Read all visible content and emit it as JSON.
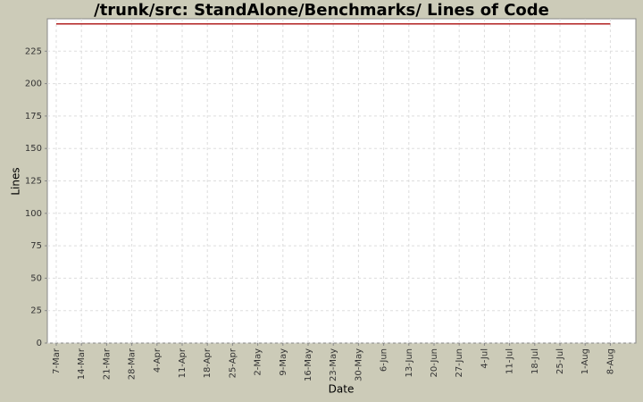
{
  "chart_data": {
    "type": "line",
    "title": "/trunk/src: StandAlone/Benchmarks/ Lines of Code",
    "x_label": "Date",
    "y_label": "Lines",
    "categories": [
      "7-Mar",
      "14-Mar",
      "21-Mar",
      "28-Mar",
      "4-Apr",
      "11-Apr",
      "18-Apr",
      "25-Apr",
      "2-May",
      "9-May",
      "16-May",
      "23-May",
      "30-May",
      "6-Jun",
      "13-Jun",
      "20-Jun",
      "27-Jun",
      "4-Jul",
      "11-Jul",
      "18-Jul",
      "25-Jul",
      "1-Aug",
      "8-Aug"
    ],
    "series": [
      {
        "name": "Lines",
        "color": "#b22222",
        "values": [
          246,
          246,
          246,
          246,
          246,
          246,
          246,
          246,
          246,
          246,
          246,
          246,
          246,
          246,
          246,
          246,
          246,
          246,
          246,
          246,
          246,
          246,
          246
        ]
      }
    ],
    "ylim": [
      0,
      250
    ],
    "yticks": [
      0,
      25,
      50,
      75,
      100,
      125,
      150,
      175,
      200,
      225
    ],
    "grid": true
  }
}
